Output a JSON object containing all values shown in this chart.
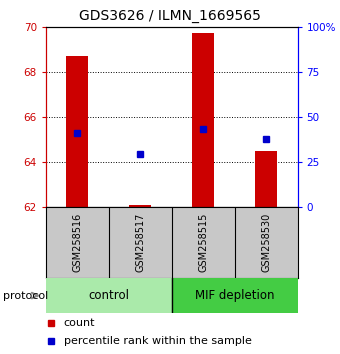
{
  "title": "GDS3626 / ILMN_1669565",
  "samples": [
    "GSM258516",
    "GSM258517",
    "GSM258515",
    "GSM258530"
  ],
  "count_values": [
    68.7,
    62.1,
    69.7,
    64.5
  ],
  "percentile_values": [
    65.3,
    64.35,
    65.45,
    65.0
  ],
  "count_base": 62.0,
  "ylim_left": [
    62,
    70
  ],
  "ylim_right": [
    0,
    100
  ],
  "yticks_left": [
    62,
    64,
    66,
    68,
    70
  ],
  "yticks_right": [
    0,
    25,
    50,
    75,
    100
  ],
  "ytick_labels_right": [
    "0",
    "25",
    "50",
    "75",
    "100%"
  ],
  "bar_color": "#cc0000",
  "dot_color": "#0000cc",
  "bar_width": 0.35,
  "protocol_label": "protocol",
  "legend_count": "count",
  "legend_percentile": "percentile rank within the sample",
  "group_info": [
    {
      "name": "control",
      "start": 0,
      "end": 2,
      "color": "#aaeaaa"
    },
    {
      "name": "MIF depletion",
      "start": 2,
      "end": 4,
      "color": "#44cc44"
    }
  ],
  "sample_bg_color": "#c8c8c8",
  "title_fontsize": 10,
  "axis_tick_fontsize": 7.5,
  "sample_label_fontsize": 7,
  "group_label_fontsize": 8.5
}
